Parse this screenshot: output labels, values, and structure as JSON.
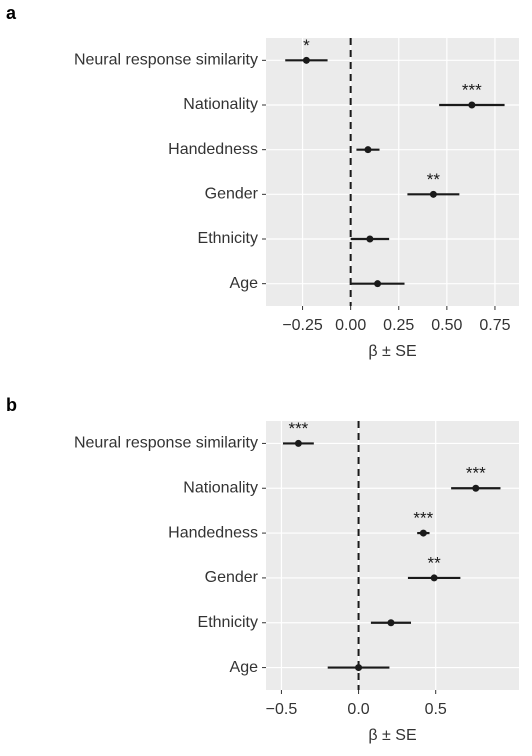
{
  "chart_data": [
    {
      "type": "dot-whisker",
      "panel_label": "a",
      "xlabel": "β ± SE",
      "categories": [
        "Neural response similarity",
        "Nationality",
        "Handedness",
        "Gender",
        "Ethnicity",
        "Age"
      ],
      "values": [
        -0.23,
        0.63,
        0.09,
        0.43,
        0.1,
        0.14
      ],
      "errors": [
        0.11,
        0.17,
        0.06,
        0.135,
        0.1,
        0.14
      ],
      "annotations": [
        "*",
        "***",
        null,
        "**",
        null,
        null
      ],
      "xlim": [
        -0.44,
        0.875
      ],
      "xticks": [
        {
          "value": -0.25,
          "label": "−0.25"
        },
        {
          "value": 0,
          "label": "0.00"
        },
        {
          "value": 0.25,
          "label": "0.25"
        },
        {
          "value": 0.5,
          "label": "0.50"
        },
        {
          "value": 0.75,
          "label": "0.75"
        }
      ],
      "vline": 0,
      "grid": true,
      "color": "#1a1a1a"
    },
    {
      "type": "dot-whisker",
      "panel_label": "b",
      "xlabel": "β ± SE",
      "categories": [
        "Neural response similarity",
        "Nationality",
        "Handedness",
        "Gender",
        "Ethnicity",
        "Age"
      ],
      "values": [
        -0.39,
        0.76,
        0.42,
        0.49,
        0.21,
        0.0
      ],
      "errors": [
        0.1,
        0.16,
        0.04,
        0.17,
        0.13,
        0.2
      ],
      "annotations": [
        "***",
        "***",
        "***",
        "**",
        null,
        null
      ],
      "xlim": [
        -0.6,
        1.04
      ],
      "xticks": [
        {
          "value": -0.5,
          "label": "−0.5"
        },
        {
          "value": 0,
          "label": "0.0"
        },
        {
          "value": 0.5,
          "label": "0.5"
        }
      ],
      "vline": 0,
      "grid": true,
      "color": "#1a1a1a"
    }
  ]
}
